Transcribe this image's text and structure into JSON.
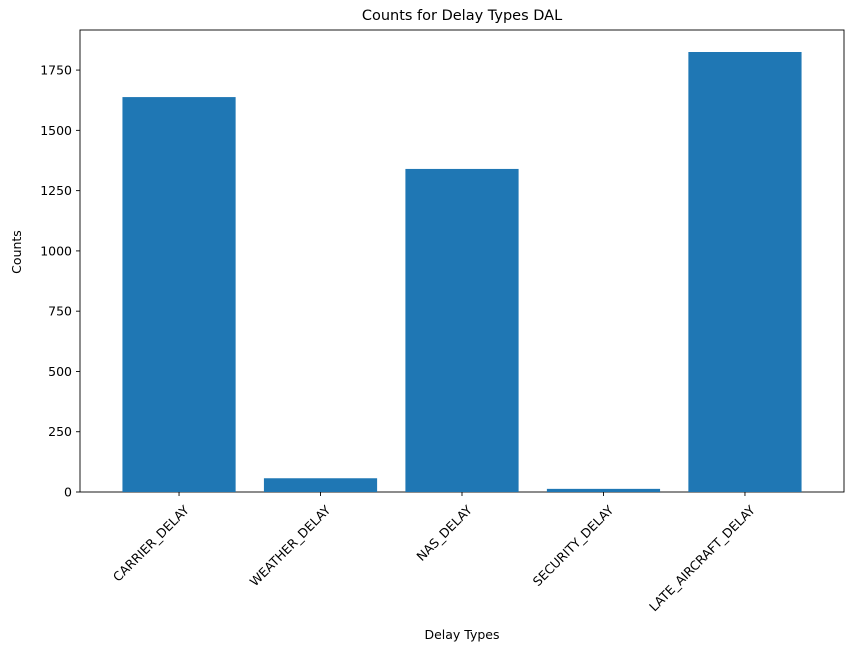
{
  "chart_data": {
    "type": "bar",
    "title": "Counts for Delay Types DAL",
    "xlabel": "Delay Types",
    "ylabel": "Counts",
    "categories": [
      "CARRIER_DELAY",
      "WEATHER_DELAY",
      "NAS_DELAY",
      "SECURITY_DELAY",
      "LATE_AIRCRAFT_DELAY"
    ],
    "values": [
      1638,
      57,
      1340,
      13,
      1825
    ],
    "ylim": [
      0,
      1800
    ],
    "yticks": [
      0,
      250,
      500,
      750,
      1000,
      1250,
      1500,
      1750
    ],
    "ytick_labels": [
      "0",
      "250",
      "500",
      "750",
      "1000",
      "1250",
      "1500",
      "1750"
    ],
    "bar_color": "#1f77b4",
    "grid": false,
    "xtick_rotation": 45
  }
}
